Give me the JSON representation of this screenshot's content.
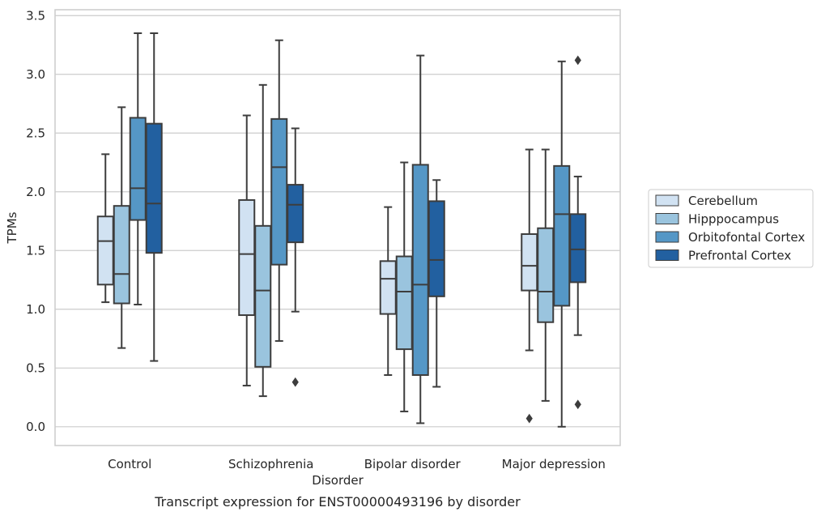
{
  "chart_data": {
    "type": "boxplot",
    "xlabel": "Disorder",
    "ylabel": "TPMs",
    "caption": "Transcript expression for ENST00000493196 by disorder",
    "ylim": [
      -0.16,
      3.55
    ],
    "yticks": [
      "0.0",
      "0.5",
      "1.0",
      "1.5",
      "2.0",
      "2.5",
      "3.0",
      "3.5"
    ],
    "ytick_values": [
      0.0,
      0.5,
      1.0,
      1.5,
      2.0,
      2.5,
      3.0,
      3.5
    ],
    "grid": "horizontal",
    "legend_placement": "right",
    "categories": [
      "Control",
      "Schizophrenia",
      "Bipolar disorder",
      "Major depression"
    ],
    "series": [
      {
        "name": "Cerebellum",
        "color": "#d1e2f2",
        "boxes": [
          {
            "min": 1.06,
            "q1": 1.21,
            "median": 1.58,
            "q3": 1.79,
            "max": 2.32,
            "outliers": []
          },
          {
            "min": 0.35,
            "q1": 0.95,
            "median": 1.47,
            "q3": 1.93,
            "max": 2.65,
            "outliers": []
          },
          {
            "min": 0.44,
            "q1": 0.96,
            "median": 1.26,
            "q3": 1.41,
            "max": 1.87,
            "outliers": []
          },
          {
            "min": 0.65,
            "q1": 1.16,
            "median": 1.37,
            "q3": 1.64,
            "max": 2.36,
            "outliers": [
              0.07
            ]
          }
        ]
      },
      {
        "name": "Hipppocampus",
        "color": "#9ac4de",
        "boxes": [
          {
            "min": 0.67,
            "q1": 1.05,
            "median": 1.3,
            "q3": 1.88,
            "max": 2.72,
            "outliers": []
          },
          {
            "min": 0.26,
            "q1": 0.51,
            "median": 1.16,
            "q3": 1.71,
            "max": 2.91,
            "outliers": []
          },
          {
            "min": 0.13,
            "q1": 0.66,
            "median": 1.15,
            "q3": 1.45,
            "max": 2.25,
            "outliers": []
          },
          {
            "min": 0.22,
            "q1": 0.89,
            "median": 1.15,
            "q3": 1.69,
            "max": 2.36,
            "outliers": []
          }
        ]
      },
      {
        "name": "Orbitofontal Cortex",
        "color": "#5597c6",
        "boxes": [
          {
            "min": 1.04,
            "q1": 1.76,
            "median": 2.03,
            "q3": 2.63,
            "max": 3.35,
            "outliers": []
          },
          {
            "min": 0.73,
            "q1": 1.38,
            "median": 2.21,
            "q3": 2.62,
            "max": 3.29,
            "outliers": []
          },
          {
            "min": 0.03,
            "q1": 0.44,
            "median": 1.21,
            "q3": 2.23,
            "max": 3.16,
            "outliers": []
          },
          {
            "min": 0.0,
            "q1": 1.03,
            "median": 1.81,
            "q3": 2.22,
            "max": 3.11,
            "outliers": []
          }
        ]
      },
      {
        "name": "Prefrontal Cortex",
        "color": "#2260a0",
        "boxes": [
          {
            "min": 0.56,
            "q1": 1.48,
            "median": 1.9,
            "q3": 2.58,
            "max": 3.35,
            "outliers": []
          },
          {
            "min": 0.98,
            "q1": 1.57,
            "median": 1.89,
            "q3": 2.06,
            "max": 2.54,
            "outliers": [
              0.38
            ]
          },
          {
            "min": 0.34,
            "q1": 1.11,
            "median": 1.42,
            "q3": 1.92,
            "max": 2.1,
            "outliers": []
          },
          {
            "min": 0.78,
            "q1": 1.23,
            "median": 1.51,
            "q3": 1.81,
            "max": 2.13,
            "outliers": [
              3.12,
              0.19
            ]
          }
        ]
      }
    ]
  }
}
